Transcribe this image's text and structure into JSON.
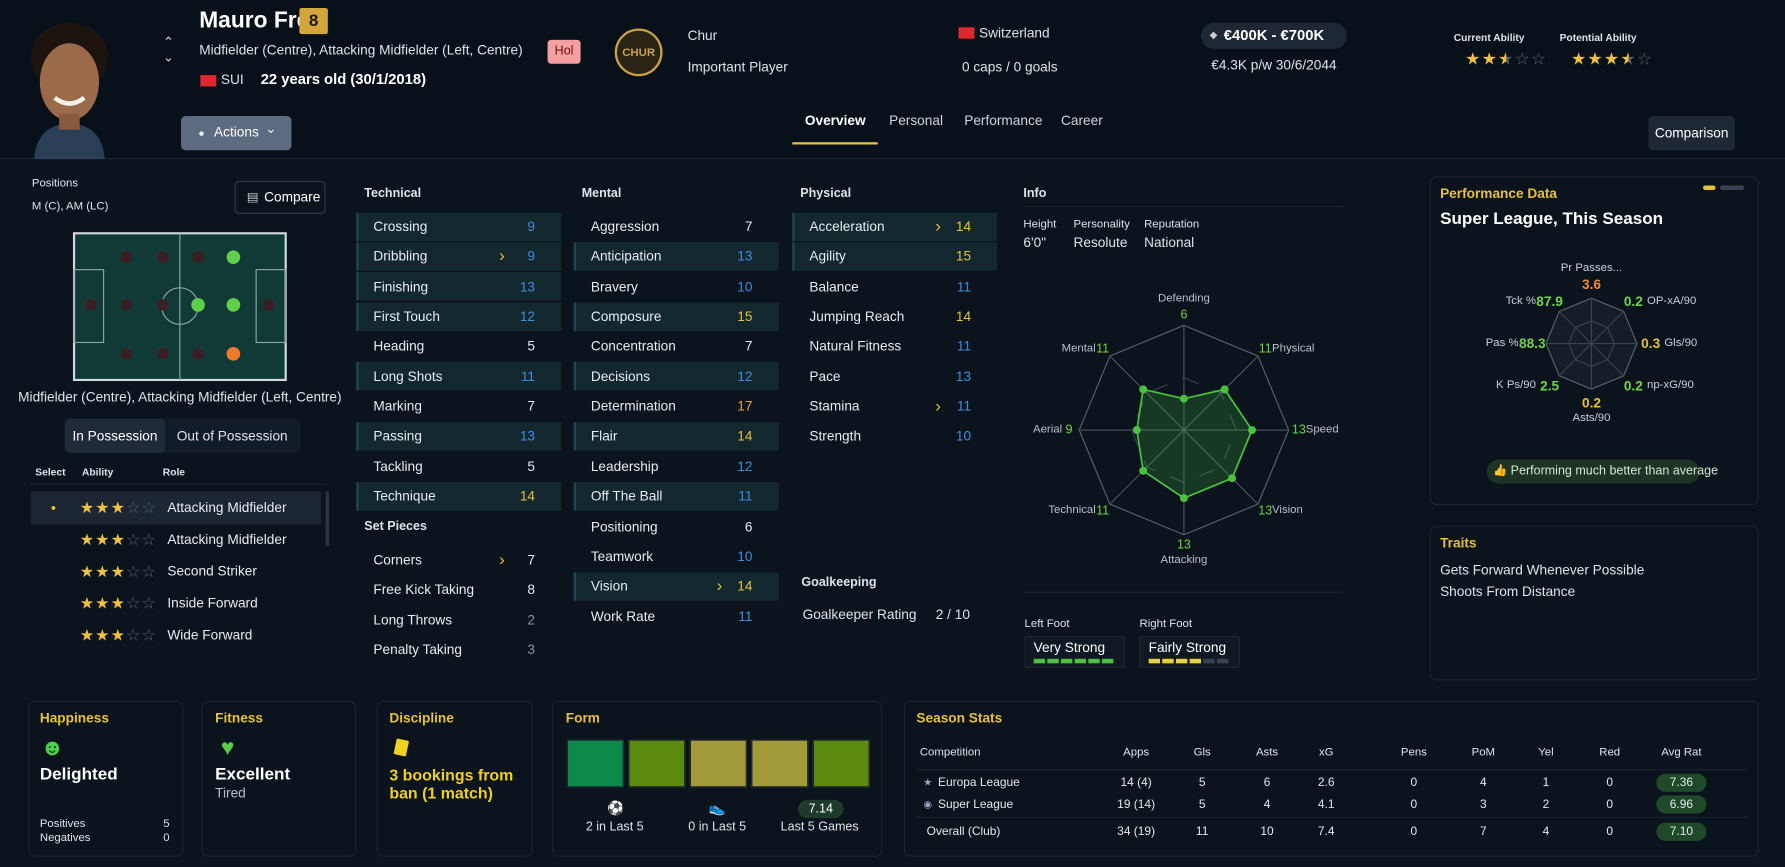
{
  "header": {
    "name": "Mauro Frey",
    "squad_number": "8",
    "positions": "Midfielder (Centre), Attacking Midfielder (Left, Centre)",
    "nationality": "SUI",
    "age": "22 years old (30/1/2018)",
    "tag": "Hol",
    "club_logo": "CHUR",
    "club": "Chur",
    "squad_status": "Important Player",
    "country": "Switzerland",
    "caps": "0 caps / 0 goals",
    "value": "€400K - €700K",
    "contract": "€4.3K p/w 30/6/2044",
    "current_ability": {
      "label": "Current Ability",
      "stars": 2.5
    },
    "potential_ability": {
      "label": "Potential Ability",
      "stars": 3.5
    },
    "actions": "Actions",
    "tabs": [
      "Overview",
      "Personal",
      "Performance",
      "Career"
    ],
    "comparison": "Comparison"
  },
  "positions": {
    "label": "Positions",
    "short": "M (C), AM (LC)",
    "compare": "Compare",
    "caption": "Midfielder (Centre), Attacking Midfielder (Left, Centre)",
    "toggles": [
      "In Possession",
      "Out of Possession"
    ],
    "columns": [
      "Select",
      "Ability",
      "Role"
    ],
    "roles": [
      {
        "stars": 3,
        "name": "Attacking Midfielder"
      },
      {
        "stars": 3,
        "name": "Attacking Midfielder"
      },
      {
        "stars": 3,
        "name": "Second Striker"
      },
      {
        "stars": 3,
        "name": "Inside Forward"
      },
      {
        "stars": 3,
        "name": "Wide Forward"
      }
    ]
  },
  "attributes": {
    "technical": {
      "title": "Technical",
      "items": [
        {
          "name": "Crossing",
          "value": 9,
          "highlight": true,
          "trend": false
        },
        {
          "name": "Dribbling",
          "value": 9,
          "highlight": true,
          "trend": true
        },
        {
          "name": "Finishing",
          "value": 13,
          "highlight": true,
          "trend": false
        },
        {
          "name": "First Touch",
          "value": 12,
          "highlight": true,
          "trend": false
        },
        {
          "name": "Heading",
          "value": 5,
          "highlight": false,
          "trend": false
        },
        {
          "name": "Long Shots",
          "value": 11,
          "highlight": true,
          "trend": false
        },
        {
          "name": "Marking",
          "value": 7,
          "highlight": false,
          "trend": false
        },
        {
          "name": "Passing",
          "value": 13,
          "highlight": true,
          "trend": false
        },
        {
          "name": "Tackling",
          "value": 5,
          "highlight": false,
          "trend": false
        },
        {
          "name": "Technique",
          "value": 14,
          "highlight": true,
          "trend": false
        }
      ]
    },
    "set_pieces": {
      "title": "Set Pieces",
      "items": [
        {
          "name": "Corners",
          "value": 7,
          "highlight": false,
          "trend": true
        },
        {
          "name": "Free Kick Taking",
          "value": 8,
          "highlight": false,
          "trend": false
        },
        {
          "name": "Long Throws",
          "value": 2,
          "highlight": false,
          "trend": false
        },
        {
          "name": "Penalty Taking",
          "value": 3,
          "highlight": false,
          "trend": false
        }
      ]
    },
    "mental": {
      "title": "Mental",
      "items": [
        {
          "name": "Aggression",
          "value": 7,
          "highlight": false,
          "trend": false
        },
        {
          "name": "Anticipation",
          "value": 13,
          "highlight": true,
          "trend": false
        },
        {
          "name": "Bravery",
          "value": 10,
          "highlight": false,
          "trend": false
        },
        {
          "name": "Composure",
          "value": 15,
          "highlight": true,
          "trend": false
        },
        {
          "name": "Concentration",
          "value": 7,
          "highlight": false,
          "trend": false
        },
        {
          "name": "Decisions",
          "value": 12,
          "highlight": true,
          "trend": false
        },
        {
          "name": "Determination",
          "value": 17,
          "highlight": false,
          "trend": false
        },
        {
          "name": "Flair",
          "value": 14,
          "highlight": true,
          "trend": false
        },
        {
          "name": "Leadership",
          "value": 12,
          "highlight": false,
          "trend": false
        },
        {
          "name": "Off The Ball",
          "value": 11,
          "highlight": true,
          "trend": false
        },
        {
          "name": "Positioning",
          "value": 6,
          "highlight": false,
          "trend": false
        },
        {
          "name": "Teamwork",
          "value": 10,
          "highlight": false,
          "trend": false
        },
        {
          "name": "Vision",
          "value": 14,
          "highlight": true,
          "trend": true
        },
        {
          "name": "Work Rate",
          "value": 11,
          "highlight": false,
          "trend": false
        }
      ]
    },
    "physical": {
      "title": "Physical",
      "items": [
        {
          "name": "Acceleration",
          "value": 14,
          "highlight": true,
          "trend": true
        },
        {
          "name": "Agility",
          "value": 15,
          "highlight": true,
          "trend": false
        },
        {
          "name": "Balance",
          "value": 11,
          "highlight": false,
          "trend": false
        },
        {
          "name": "Jumping Reach",
          "value": 14,
          "highlight": false,
          "trend": false
        },
        {
          "name": "Natural Fitness",
          "value": 11,
          "highlight": false,
          "trend": false
        },
        {
          "name": "Pace",
          "value": 13,
          "highlight": false,
          "trend": false
        },
        {
          "name": "Stamina",
          "value": 11,
          "highlight": false,
          "trend": true
        },
        {
          "name": "Strength",
          "value": 10,
          "highlight": false,
          "trend": false
        }
      ]
    },
    "goalkeeping": {
      "title": "Goalkeeping",
      "label": "Goalkeeper Rating",
      "value": "2 / 10"
    }
  },
  "info": {
    "title": "Info",
    "fields": [
      {
        "label": "Height",
        "value": "6'0\""
      },
      {
        "label": "Personality",
        "value": "Resolute"
      },
      {
        "label": "Reputation",
        "value": "National"
      }
    ],
    "radar": {
      "rlim": [
        0,
        20
      ],
      "categories": [
        "Defending",
        "Physical",
        "Speed",
        "Vision",
        "Attacking",
        "Technical",
        "Aerial",
        "Mental"
      ],
      "values": [
        6,
        11,
        13,
        13,
        13,
        11,
        9,
        11
      ]
    },
    "feet": [
      {
        "label": "Left Foot",
        "value": "Very Strong"
      },
      {
        "label": "Right Foot",
        "value": "Fairly Strong"
      }
    ]
  },
  "performance": {
    "title": "Performance Data",
    "subtitle": "Super League, This Season",
    "metrics": [
      {
        "label": "Pr Passes...",
        "value": "3.6",
        "color": "#f08a3c"
      },
      {
        "label": "OP-xA/90",
        "value": "0.2",
        "color": "#6fd44a"
      },
      {
        "label": "Gls/90",
        "value": "0.3",
        "color": "#e6c23a"
      },
      {
        "label": "np-xG/90",
        "value": "0.2",
        "color": "#6fd44a"
      },
      {
        "label": "Asts/90",
        "value": "0.2",
        "color": "#e6c23a"
      },
      {
        "label": "K Ps/90",
        "value": "2.5",
        "color": "#6fd44a"
      },
      {
        "label": "Pas %",
        "value": "88.3",
        "color": "#6fd44a"
      },
      {
        "label": "Tck %",
        "value": "87.9",
        "color": "#6fd44a"
      }
    ],
    "note": "Performing much better than average"
  },
  "traits": {
    "title": "Traits",
    "items": [
      "Gets Forward Whenever Possible",
      "Shoots From Distance"
    ]
  },
  "happiness": {
    "title": "Happiness",
    "status": "Delighted",
    "rows": [
      {
        "label": "Positives",
        "value": "5"
      },
      {
        "label": "Negatives",
        "value": "0"
      }
    ]
  },
  "fitness": {
    "title": "Fitness",
    "status": "Excellent",
    "condition": "Tired"
  },
  "discipline": {
    "title": "Discipline",
    "status": "3 bookings from ban (1 match)"
  },
  "form": {
    "title": "Form",
    "colors": [
      "#0b8a4a",
      "#5a8a10",
      "#a39a3a",
      "#a39a3a",
      "#5a8a10"
    ],
    "goals": "2 in Last 5",
    "assists": "0 in Last 5",
    "rating": "7.14",
    "rating_label": "Last 5 Games"
  },
  "season_stats": {
    "title": "Season Stats",
    "columns": [
      "Competition",
      "Apps",
      "Gls",
      "Asts",
      "xG",
      "Pens",
      "PoM",
      "Yel",
      "Red",
      "Avg Rat"
    ],
    "rows": [
      [
        "Europa League",
        "14 (4)",
        "5",
        "6",
        "2.6",
        "0",
        "4",
        "1",
        "0",
        "7.36"
      ],
      [
        "Super League",
        "19 (14)",
        "5",
        "4",
        "4.1",
        "0",
        "3",
        "2",
        "0",
        "6.96"
      ],
      [
        "Overall (Club)",
        "34 (19)",
        "11",
        "10",
        "7.4",
        "0",
        "7",
        "4",
        "0",
        "7.10"
      ]
    ]
  }
}
